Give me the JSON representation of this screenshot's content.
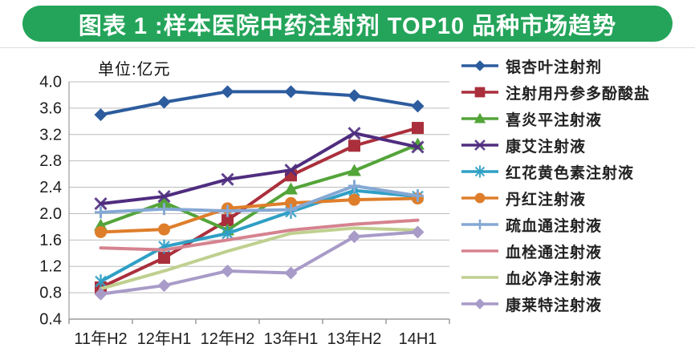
{
  "title": "图表 1 :样本医院中药注射剂 TOP10 品种市场趋势",
  "theme": {
    "title_bg": "#24A45A",
    "title_text": "#FFFFFF",
    "grid_color": "#BDBDBD",
    "axis_color": "#9B9B9B",
    "tick_text_color": "#1E1E1E"
  },
  "chart_data": {
    "type": "line",
    "title": "图表 1 :样本医院中药注射剂 TOP10 品种市场趋势",
    "unit": "单位:亿元",
    "categories": [
      "11年H2",
      "12年H1",
      "12年H2",
      "13年H1",
      "13年H2",
      "14H1"
    ],
    "ylim": [
      0.4,
      4.0
    ],
    "ytick_step": 0.4,
    "grid": true,
    "legend_position": "right",
    "series": [
      {
        "name": "银杏叶注射剂",
        "color": "#2D5C9E",
        "marker": "diamond",
        "values": [
          3.5,
          3.69,
          3.85,
          3.85,
          3.79,
          3.63
        ]
      },
      {
        "name": "注射用丹参多酚酸盐",
        "color": "#AA2F3C",
        "marker": "square",
        "values": [
          0.88,
          1.33,
          1.9,
          2.58,
          3.03,
          3.3
        ]
      },
      {
        "name": "喜炎平注射液",
        "color": "#53A439",
        "marker": "triangle",
        "values": [
          1.82,
          2.17,
          1.75,
          2.37,
          2.65,
          3.05
        ]
      },
      {
        "name": "康艾注射液",
        "color": "#4F2D7F",
        "marker": "x",
        "values": [
          2.15,
          2.26,
          2.52,
          2.66,
          3.22,
          3.01
        ]
      },
      {
        "name": "红花黄色素注射液",
        "color": "#2F9FC5",
        "marker": "asterisk",
        "values": [
          0.97,
          1.5,
          1.7,
          2.03,
          2.35,
          2.26
        ]
      },
      {
        "name": "丹红注射液",
        "color": "#DE7E2B",
        "marker": "circle",
        "values": [
          1.72,
          1.76,
          2.08,
          2.16,
          2.21,
          2.23
        ]
      },
      {
        "name": "疏血通注射液",
        "color": "#85A8D4",
        "marker": "plus",
        "values": [
          2.02,
          2.07,
          2.04,
          2.06,
          2.42,
          2.27
        ]
      },
      {
        "name": "血栓通注射液",
        "color": "#D5838F",
        "marker": "none",
        "values": [
          1.48,
          1.45,
          1.6,
          1.75,
          1.84,
          1.9
        ]
      },
      {
        "name": "血必净注射液",
        "color": "#BFD08F",
        "marker": "none",
        "values": [
          0.86,
          1.13,
          1.43,
          1.7,
          1.78,
          1.75
        ]
      },
      {
        "name": "康莱特注射液",
        "color": "#A89BC8",
        "marker": "diamond",
        "values": [
          0.78,
          0.91,
          1.13,
          1.1,
          1.65,
          1.72
        ]
      }
    ]
  }
}
